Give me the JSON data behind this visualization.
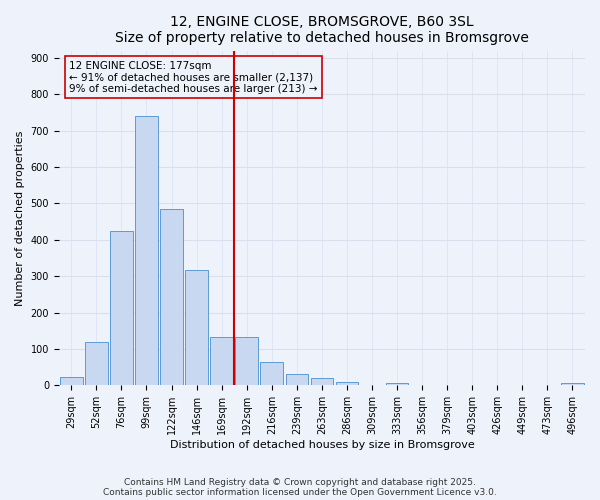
{
  "title": "12, ENGINE CLOSE, BROMSGROVE, B60 3SL",
  "subtitle": "Size of property relative to detached houses in Bromsgrove",
  "xlabel": "Distribution of detached houses by size in Bromsgrove",
  "ylabel": "Number of detached properties",
  "bar_labels": [
    "29sqm",
    "52sqm",
    "76sqm",
    "99sqm",
    "122sqm",
    "146sqm",
    "169sqm",
    "192sqm",
    "216sqm",
    "239sqm",
    "263sqm",
    "286sqm",
    "309sqm",
    "333sqm",
    "356sqm",
    "379sqm",
    "403sqm",
    "426sqm",
    "449sqm",
    "473sqm",
    "496sqm"
  ],
  "bar_values": [
    22,
    120,
    425,
    740,
    485,
    318,
    132,
    132,
    63,
    32,
    20,
    8,
    0,
    7,
    0,
    0,
    0,
    0,
    0,
    0,
    7
  ],
  "bar_color": "#c8d8f0",
  "bar_edge_color": "#5b9bd5",
  "ref_line_index": 7,
  "ref_line_label": "12 ENGINE CLOSE: 177sqm",
  "annotation_line1": "← 91% of detached houses are smaller (2,137)",
  "annotation_line2": "9% of semi-detached houses are larger (213) →",
  "ylim": [
    0,
    920
  ],
  "yticks": [
    0,
    100,
    200,
    300,
    400,
    500,
    600,
    700,
    800,
    900
  ],
  "ref_line_color": "#cc0000",
  "footnote1": "Contains HM Land Registry data © Crown copyright and database right 2025.",
  "footnote2": "Contains public sector information licensed under the Open Government Licence v3.0.",
  "bg_color": "#eef2fb",
  "grid_color": "#d8e0f0",
  "title_fontsize": 10,
  "subtitle_fontsize": 8.5,
  "axis_label_fontsize": 8,
  "tick_fontsize": 7,
  "annotation_fontsize": 7.5,
  "footnote_fontsize": 6.5
}
